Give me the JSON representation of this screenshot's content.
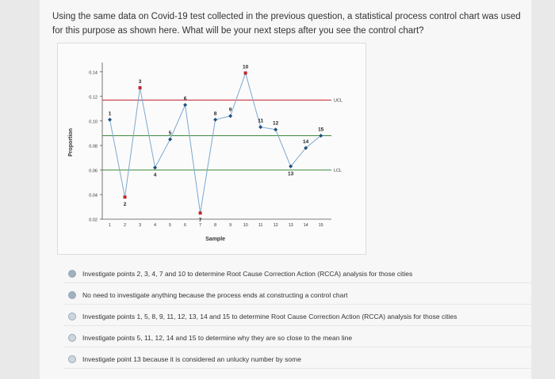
{
  "question": {
    "text": "Using the same data on Covid-19 test collected in the previous question, a statistical process control chart was used for this purpose as shown here. What will be your next steps after you see the control chart?"
  },
  "chart_data": {
    "type": "line",
    "xlabel": "Sample",
    "ylabel": "Proportion",
    "x": [
      1,
      2,
      3,
      4,
      5,
      6,
      7,
      8,
      9,
      10,
      11,
      12,
      13,
      14,
      15
    ],
    "point_labels": [
      "1",
      "2",
      "3",
      "4",
      "5",
      "6",
      "7",
      "8",
      "9",
      "10",
      "11",
      "12",
      "13",
      "14",
      "15"
    ],
    "values": [
      0.101,
      0.038,
      0.127,
      0.062,
      0.085,
      0.113,
      0.025,
      0.101,
      0.104,
      0.139,
      0.095,
      0.093,
      0.063,
      0.078,
      0.088
    ],
    "xticks": [
      "1",
      "2",
      "3",
      "4",
      "5",
      "6",
      "7",
      "8",
      "9",
      "10",
      "11",
      "12",
      "13",
      "14",
      "15"
    ],
    "yticks": [
      "0.02",
      "0.04",
      "0.06",
      "0.08",
      "0.10",
      "0.12",
      "0.14"
    ],
    "ytick_values": [
      0.02,
      0.04,
      0.06,
      0.08,
      0.1,
      0.12,
      0.14
    ],
    "ylim": [
      0.02,
      0.145
    ],
    "xlim": [
      0.5,
      15.7
    ],
    "ucl": 0.117,
    "lcl": 0.06,
    "center": 0.088,
    "ucl_label": "UCL",
    "lcl_label": "LCL",
    "out_of_control": [
      2,
      3,
      7,
      10
    ],
    "colors": {
      "line": "#7da7cf",
      "in_control": "#1f4e79",
      "out_of_control": "#c0262d",
      "ucl": "#c0262d",
      "lcl": "#3a8a3a",
      "center": "#3a8a3a"
    },
    "grid": false
  },
  "options": [
    {
      "label": "Investigate points 2, 3, 4, 7 and 10 to determine Root Cause Correction Action (RCCA) analysis for those cities",
      "selected": true
    },
    {
      "label": "No need to investigate anything because the process ends at constructing a control chart",
      "selected": true
    },
    {
      "label": "Investigate points 1, 5, 8, 9, 11, 12, 13, 14 and 15 to determine Root Cause Correction Action (RCCA) analysis for those cities",
      "selected": false
    },
    {
      "label": "Investigate points 5, 11, 12, 14 and 15 to determine why they are so close to the mean line",
      "selected": false
    },
    {
      "label": "Investigate point 13 because it is considered an unlucky number by some",
      "selected": false
    }
  ]
}
